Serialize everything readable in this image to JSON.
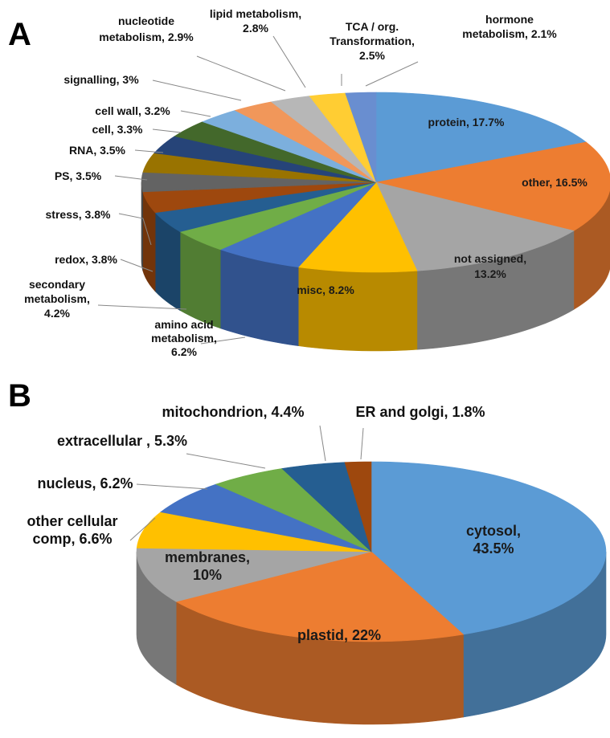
{
  "panels": {
    "a": "A",
    "b": "B"
  },
  "chart_data": [
    {
      "type": "pie",
      "panel": "A",
      "title": "",
      "slices": [
        {
          "name": "protein",
          "value": 17.7,
          "label_lines": [
            "protein, 17.7%"
          ],
          "color": "#5B9BD5"
        },
        {
          "name": "other",
          "value": 16.5,
          "label_lines": [
            "other, 16.5%"
          ],
          "color": "#ED7D31"
        },
        {
          "name": "not assigned",
          "value": 13.2,
          "label_lines": [
            "not assigned,",
            "13.2%"
          ],
          "color": "#A5A5A5"
        },
        {
          "name": "misc",
          "value": 8.2,
          "label_lines": [
            "misc, 8.2%"
          ],
          "color": "#FFC000"
        },
        {
          "name": "amino acid metabolism",
          "value": 6.2,
          "label_lines": [
            "amino acid",
            "metabolism,",
            "6.2%"
          ],
          "color": "#4472C4"
        },
        {
          "name": "secondary metabolism",
          "value": 4.2,
          "label_lines": [
            "secondary",
            "metabolism,",
            "4.2%"
          ],
          "color": "#70AD47"
        },
        {
          "name": "redox",
          "value": 3.8,
          "label_lines": [
            "redox, 3.8%"
          ],
          "color": "#255E91"
        },
        {
          "name": "stress",
          "value": 3.8,
          "label_lines": [
            "stress, 3.8%"
          ],
          "color": "#9E480E"
        },
        {
          "name": "PS",
          "value": 3.5,
          "label_lines": [
            "PS, 3.5%"
          ],
          "color": "#636363"
        },
        {
          "name": "RNA",
          "value": 3.5,
          "label_lines": [
            "RNA, 3.5%"
          ],
          "color": "#997300"
        },
        {
          "name": "cell",
          "value": 3.3,
          "label_lines": [
            "cell, 3.3%"
          ],
          "color": "#264478"
        },
        {
          "name": "cell wall",
          "value": 3.2,
          "label_lines": [
            "cell wall, 3.2%"
          ],
          "color": "#43682B"
        },
        {
          "name": "signalling",
          "value": 3.0,
          "label_lines": [
            "signalling, 3%"
          ],
          "color": "#7CAFDD"
        },
        {
          "name": "nucleotide metabolism",
          "value": 2.9,
          "label_lines": [
            "nucleotide",
            "metabolism, 2.9%"
          ],
          "color": "#F1975A"
        },
        {
          "name": "lipid metabolism",
          "value": 2.8,
          "label_lines": [
            "lipid metabolism,",
            "2.8%"
          ],
          "color": "#B7B7B7"
        },
        {
          "name": "TCA / org. Transformation",
          "value": 2.5,
          "label_lines": [
            "TCA / org.",
            "Transformation,",
            "2.5%"
          ],
          "color": "#FFCD33"
        },
        {
          "name": "hormone metabolism",
          "value": 2.1,
          "label_lines": [
            "hormone",
            "metabolism, 2.1%"
          ],
          "color": "#698ED0"
        }
      ]
    },
    {
      "type": "pie",
      "panel": "B",
      "title": "",
      "slices": [
        {
          "name": "cytosol",
          "value": 43.5,
          "label_lines": [
            "cytosol,",
            "43.5%"
          ],
          "color": "#5B9BD5"
        },
        {
          "name": "plastid",
          "value": 22,
          "label_lines": [
            "plastid, 22%"
          ],
          "color": "#ED7D31"
        },
        {
          "name": "membranes",
          "value": 10,
          "label_lines": [
            "membranes,",
            "10%"
          ],
          "color": "#A5A5A5"
        },
        {
          "name": "other cellular comp",
          "value": 6.6,
          "label_lines": [
            "other cellular",
            "comp, 6.6%"
          ],
          "color": "#FFC000"
        },
        {
          "name": "nucleus",
          "value": 6.2,
          "label_lines": [
            "nucleus, 6.2%"
          ],
          "color": "#4472C4"
        },
        {
          "name": "extracellular",
          "value": 5.3,
          "label_lines": [
            "extracellular , 5.3%"
          ],
          "color": "#70AD47"
        },
        {
          "name": "mitochondrion",
          "value": 4.4,
          "label_lines": [
            "mitochondrion, 4.4%"
          ],
          "color": "#255E91"
        },
        {
          "name": "ER and golgi",
          "value": 1.8,
          "label_lines": [
            "ER and golgi, 1.8%"
          ],
          "color": "#9E480E"
        }
      ]
    }
  ]
}
